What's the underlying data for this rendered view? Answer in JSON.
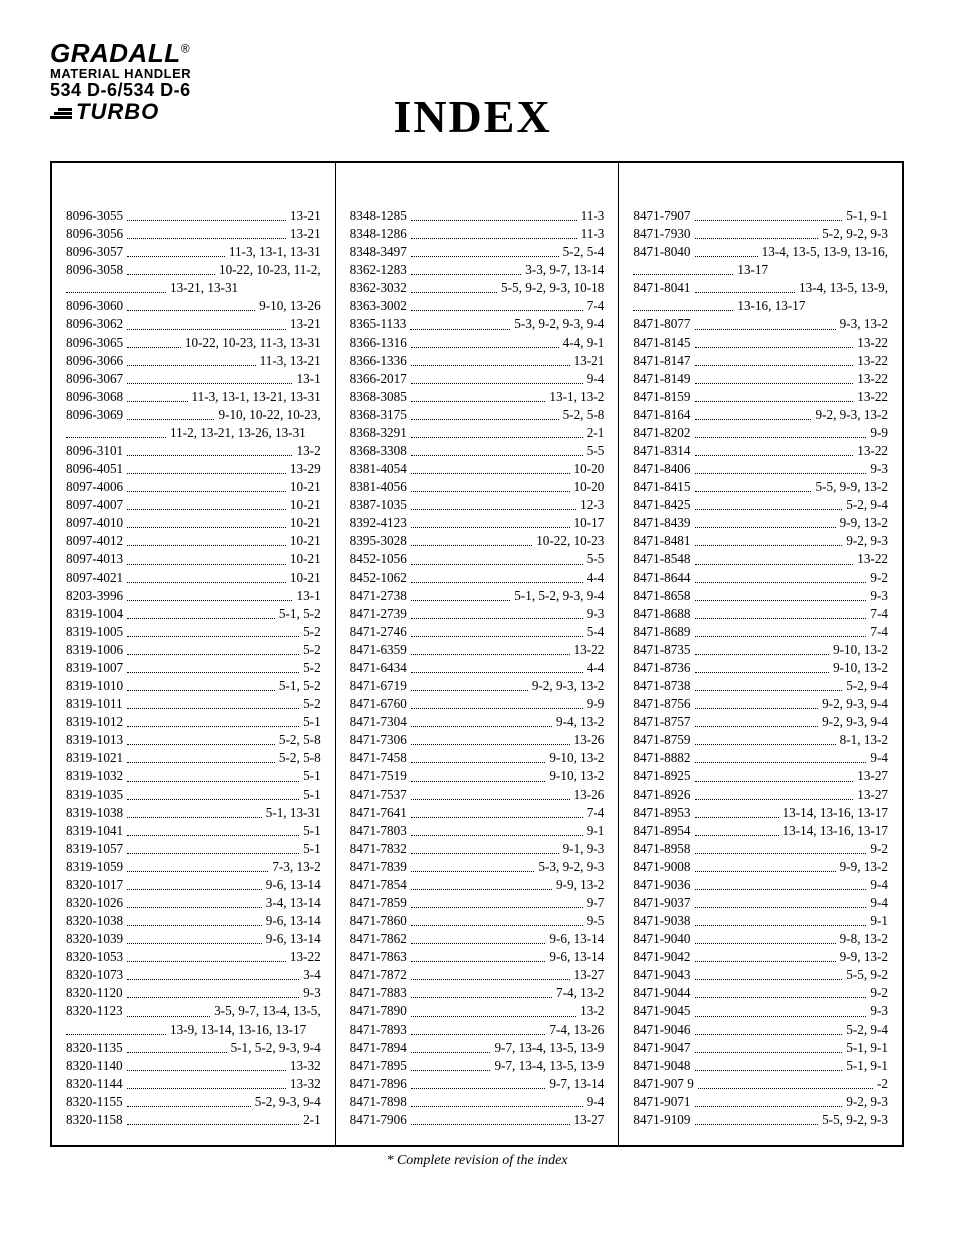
{
  "logo": {
    "brand": "GRADALL",
    "reg": "®",
    "sub1": "MATERIAL HANDLER",
    "sub2": "534 D-6/534 D-6",
    "sub3": "TURBO"
  },
  "title": "INDEX",
  "footnote": "*  Complete revision of the index",
  "columns": [
    [
      {
        "p": "8096-3055",
        "g": "13-21"
      },
      {
        "p": "8096-3056",
        "g": "13-21"
      },
      {
        "p": "8096-3057",
        "g": "11-3, 13-1, 13-31"
      },
      {
        "p": "8096-3058",
        "g": "10-22, 10-23, 11-2,"
      },
      {
        "cont": true,
        "g": "13-21, 13-31"
      },
      {
        "p": "8096-3060",
        "g": "9-10, 13-26"
      },
      {
        "p": "8096-3062",
        "g": "13-21"
      },
      {
        "p": "8096-3065",
        "g": "10-22, 10-23, 11-3, 13-31"
      },
      {
        "p": "8096-3066",
        "g": "11-3, 13-21"
      },
      {
        "p": "8096-3067",
        "g": "13-1"
      },
      {
        "p": "8096-3068",
        "g": "11-3, 13-1, 13-21, 13-31"
      },
      {
        "p": "8096-3069",
        "g": "9-10, 10-22, 10-23,"
      },
      {
        "cont": true,
        "g": "11-2, 13-21, 13-26, 13-31"
      },
      {
        "p": "8096-3101",
        "g": "13-2"
      },
      {
        "p": "8096-4051",
        "g": "13-29"
      },
      {
        "p": "8097-4006",
        "g": "10-21"
      },
      {
        "p": "8097-4007",
        "g": "10-21"
      },
      {
        "p": "8097-4010",
        "g": "10-21"
      },
      {
        "p": "8097-4012",
        "g": "10-21"
      },
      {
        "p": "8097-4013",
        "g": "10-21"
      },
      {
        "p": "8097-4021",
        "g": "10-21"
      },
      {
        "p": "8203-3996",
        "g": "13-1"
      },
      {
        "p": "8319-1004",
        "g": "5-1, 5-2"
      },
      {
        "p": "8319-1005",
        "g": "5-2"
      },
      {
        "p": "8319-1006",
        "g": "5-2"
      },
      {
        "p": "8319-1007",
        "g": "5-2"
      },
      {
        "p": "8319-1010",
        "g": "5-1, 5-2"
      },
      {
        "p": "8319-1011",
        "g": "5-2"
      },
      {
        "p": "8319-1012",
        "g": "5-1"
      },
      {
        "p": "8319-1013",
        "g": "5-2, 5-8"
      },
      {
        "p": "8319-1021",
        "g": "5-2, 5-8"
      },
      {
        "p": "8319-1032",
        "g": "5-1"
      },
      {
        "p": "8319-1035",
        "g": "5-1"
      },
      {
        "p": "8319-1038",
        "g": "5-1, 13-31"
      },
      {
        "p": "8319-1041",
        "g": "5-1"
      },
      {
        "p": "8319-1057",
        "g": "5-1"
      },
      {
        "p": "8319-1059",
        "g": "7-3, 13-2"
      },
      {
        "p": "8320-1017",
        "g": "9-6, 13-14"
      },
      {
        "p": "8320-1026",
        "g": "3-4, 13-14"
      },
      {
        "p": "8320-1038",
        "g": "9-6, 13-14"
      },
      {
        "p": "8320-1039",
        "g": "9-6, 13-14"
      },
      {
        "p": "8320-1053",
        "g": "13-22"
      },
      {
        "p": "8320-1073",
        "g": "3-4"
      },
      {
        "p": "8320-1120",
        "g": "9-3"
      },
      {
        "p": "8320-1123",
        "g": "3-5, 9-7, 13-4, 13-5,"
      },
      {
        "cont": true,
        "g": "13-9, 13-14, 13-16, 13-17"
      },
      {
        "p": "8320-1135",
        "g": "5-1, 5-2, 9-3, 9-4"
      },
      {
        "p": "8320-1140",
        "g": "13-32"
      },
      {
        "p": "8320-1144",
        "g": "13-32"
      },
      {
        "p": "8320-1155",
        "g": "5-2, 9-3, 9-4"
      },
      {
        "p": "8320-1158",
        "g": "2-1"
      }
    ],
    [
      {
        "p": "8348-1285",
        "g": "11-3"
      },
      {
        "p": "8348-1286",
        "g": "11-3"
      },
      {
        "p": "8348-3497",
        "g": "5-2, 5-4"
      },
      {
        "p": "8362-1283",
        "g": "3-3, 9-7, 13-14"
      },
      {
        "p": "8362-3032",
        "g": "5-5, 9-2, 9-3, 10-18"
      },
      {
        "p": "8363-3002",
        "g": "7-4"
      },
      {
        "p": "8365-1133",
        "g": "5-3, 9-2, 9-3, 9-4"
      },
      {
        "p": "8366-1316",
        "g": "4-4, 9-1"
      },
      {
        "p": "8366-1336",
        "g": "13-21"
      },
      {
        "p": "8366-2017",
        "g": "9-4"
      },
      {
        "p": "8368-3085",
        "g": "13-1, 13-2"
      },
      {
        "p": "8368-3175",
        "g": "5-2, 5-8"
      },
      {
        "p": "8368-3291",
        "g": "2-1"
      },
      {
        "p": "8368-3308",
        "g": "5-5"
      },
      {
        "p": "8381-4054",
        "g": "10-20"
      },
      {
        "p": "8381-4056",
        "g": "10-20"
      },
      {
        "p": "8387-1035",
        "g": "12-3"
      },
      {
        "p": "8392-4123",
        "g": "10-17"
      },
      {
        "p": "8395-3028",
        "g": "10-22, 10-23"
      },
      {
        "p": "8452-1056",
        "g": "5-5"
      },
      {
        "p": "8452-1062",
        "g": "4-4"
      },
      {
        "p": "8471-2738",
        "g": "5-1, 5-2, 9-3, 9-4"
      },
      {
        "p": "8471-2739",
        "g": "9-3"
      },
      {
        "p": "8471-2746",
        "g": "5-4"
      },
      {
        "p": "8471-6359",
        "g": "13-22"
      },
      {
        "p": "8471-6434",
        "g": "4-4"
      },
      {
        "p": "8471-6719",
        "g": "9-2, 9-3, 13-2"
      },
      {
        "p": "8471-6760",
        "g": "9-9"
      },
      {
        "p": "8471-7304",
        "g": "9-4, 13-2"
      },
      {
        "p": "8471-7306",
        "g": "13-26"
      },
      {
        "p": "8471-7458",
        "g": "9-10, 13-2"
      },
      {
        "p": "8471-7519",
        "g": "9-10, 13-2"
      },
      {
        "p": "8471-7537",
        "g": "13-26"
      },
      {
        "p": "8471-7641",
        "g": "7-4"
      },
      {
        "p": "8471-7803",
        "g": "9-1"
      },
      {
        "p": "8471-7832",
        "g": "9-1, 9-3"
      },
      {
        "p": "8471-7839",
        "g": "5-3, 9-2, 9-3"
      },
      {
        "p": "8471-7854",
        "g": "9-9, 13-2"
      },
      {
        "p": "8471-7859",
        "g": "9-7"
      },
      {
        "p": "8471-7860",
        "g": "9-5"
      },
      {
        "p": "8471-7862",
        "g": "9-6, 13-14"
      },
      {
        "p": "8471-7863",
        "g": "9-6, 13-14"
      },
      {
        "p": "8471-7872",
        "g": "13-27"
      },
      {
        "p": "8471-7883",
        "g": "7-4, 13-2"
      },
      {
        "p": "8471-7890",
        "g": "13-2"
      },
      {
        "p": "8471-7893",
        "g": "7-4, 13-26"
      },
      {
        "p": "8471-7894",
        "g": "9-7, 13-4, 13-5, 13-9"
      },
      {
        "p": "8471-7895",
        "g": "9-7, 13-4, 13-5, 13-9"
      },
      {
        "p": "8471-7896",
        "g": "9-7, 13-14"
      },
      {
        "p": "8471-7898",
        "g": "9-4"
      },
      {
        "p": "8471-7906",
        "g": "13-27"
      }
    ],
    [
      {
        "p": "8471-7907",
        "g": "5-1, 9-1"
      },
      {
        "p": "8471-7930",
        "g": "5-2, 9-2, 9-3"
      },
      {
        "p": "8471-8040",
        "g": "13-4, 13-5, 13-9, 13-16,"
      },
      {
        "cont": true,
        "g": "13-17"
      },
      {
        "p": "8471-8041",
        "g": "13-4, 13-5, 13-9,"
      },
      {
        "cont": true,
        "g": "13-16, 13-17"
      },
      {
        "p": "8471-8077",
        "g": "9-3, 13-2"
      },
      {
        "p": "8471-8145",
        "g": "13-22"
      },
      {
        "p": "8471-8147",
        "g": "13-22"
      },
      {
        "p": "8471-8149",
        "g": "13-22"
      },
      {
        "p": "8471-8159",
        "g": "13-22"
      },
      {
        "p": "8471-8164",
        "g": "9-2, 9-3, 13-2"
      },
      {
        "p": "8471-8202",
        "g": "9-9"
      },
      {
        "p": "8471-8314",
        "g": "13-22"
      },
      {
        "p": "8471-8406",
        "g": "9-3"
      },
      {
        "p": "8471-8415",
        "g": "5-5, 9-9, 13-2"
      },
      {
        "p": "8471-8425",
        "g": "5-2, 9-4"
      },
      {
        "p": "8471-8439",
        "g": "9-9, 13-2"
      },
      {
        "p": "8471-8481",
        "g": "9-2, 9-3"
      },
      {
        "p": "8471-8548",
        "g": "13-22"
      },
      {
        "p": "8471-8644",
        "g": "9-2"
      },
      {
        "p": "8471-8658",
        "g": "9-3"
      },
      {
        "p": "8471-8688",
        "g": "7-4"
      },
      {
        "p": "8471-8689",
        "g": "7-4"
      },
      {
        "p": "8471-8735",
        "g": "9-10, 13-2"
      },
      {
        "p": "8471-8736",
        "g": "9-10, 13-2"
      },
      {
        "p": "8471-8738",
        "g": "5-2, 9-4"
      },
      {
        "p": "8471-8756",
        "g": "9-2, 9-3, 9-4"
      },
      {
        "p": "8471-8757",
        "g": "9-2, 9-3, 9-4"
      },
      {
        "p": "8471-8759",
        "g": "8-1, 13-2"
      },
      {
        "p": "8471-8882",
        "g": "9-4"
      },
      {
        "p": "8471-8925",
        "g": "13-27"
      },
      {
        "p": "8471-8926",
        "g": "13-27"
      },
      {
        "p": "8471-8953",
        "g": "13-14, 13-16, 13-17"
      },
      {
        "p": "8471-8954",
        "g": "13-14, 13-16, 13-17"
      },
      {
        "p": "8471-8958",
        "g": "9-2"
      },
      {
        "p": "8471-9008",
        "g": "9-9, 13-2"
      },
      {
        "p": "8471-9036",
        "g": "9-4"
      },
      {
        "p": "8471-9037",
        "g": "9-4"
      },
      {
        "p": "8471-9038",
        "g": "9-1"
      },
      {
        "p": "8471-9040",
        "g": "9-8, 13-2"
      },
      {
        "p": "8471-9042",
        "g": "9-9, 13-2"
      },
      {
        "p": "8471-9043",
        "g": "5-5, 9-2"
      },
      {
        "p": "8471-9044",
        "g": "9-2"
      },
      {
        "p": "8471-9045",
        "g": "9-3"
      },
      {
        "p": "8471-9046",
        "g": "5-2, 9-4"
      },
      {
        "p": "8471-9047",
        "g": "5-1, 9-1"
      },
      {
        "p": "8471-9048",
        "g": "5-1, 9-1"
      },
      {
        "p": "8471-907 9",
        "g": "-2"
      },
      {
        "p": "8471-9071",
        "g": "9-2, 9-3"
      },
      {
        "p": "8471-9109",
        "g": "5-5, 9-2, 9-3"
      }
    ]
  ]
}
